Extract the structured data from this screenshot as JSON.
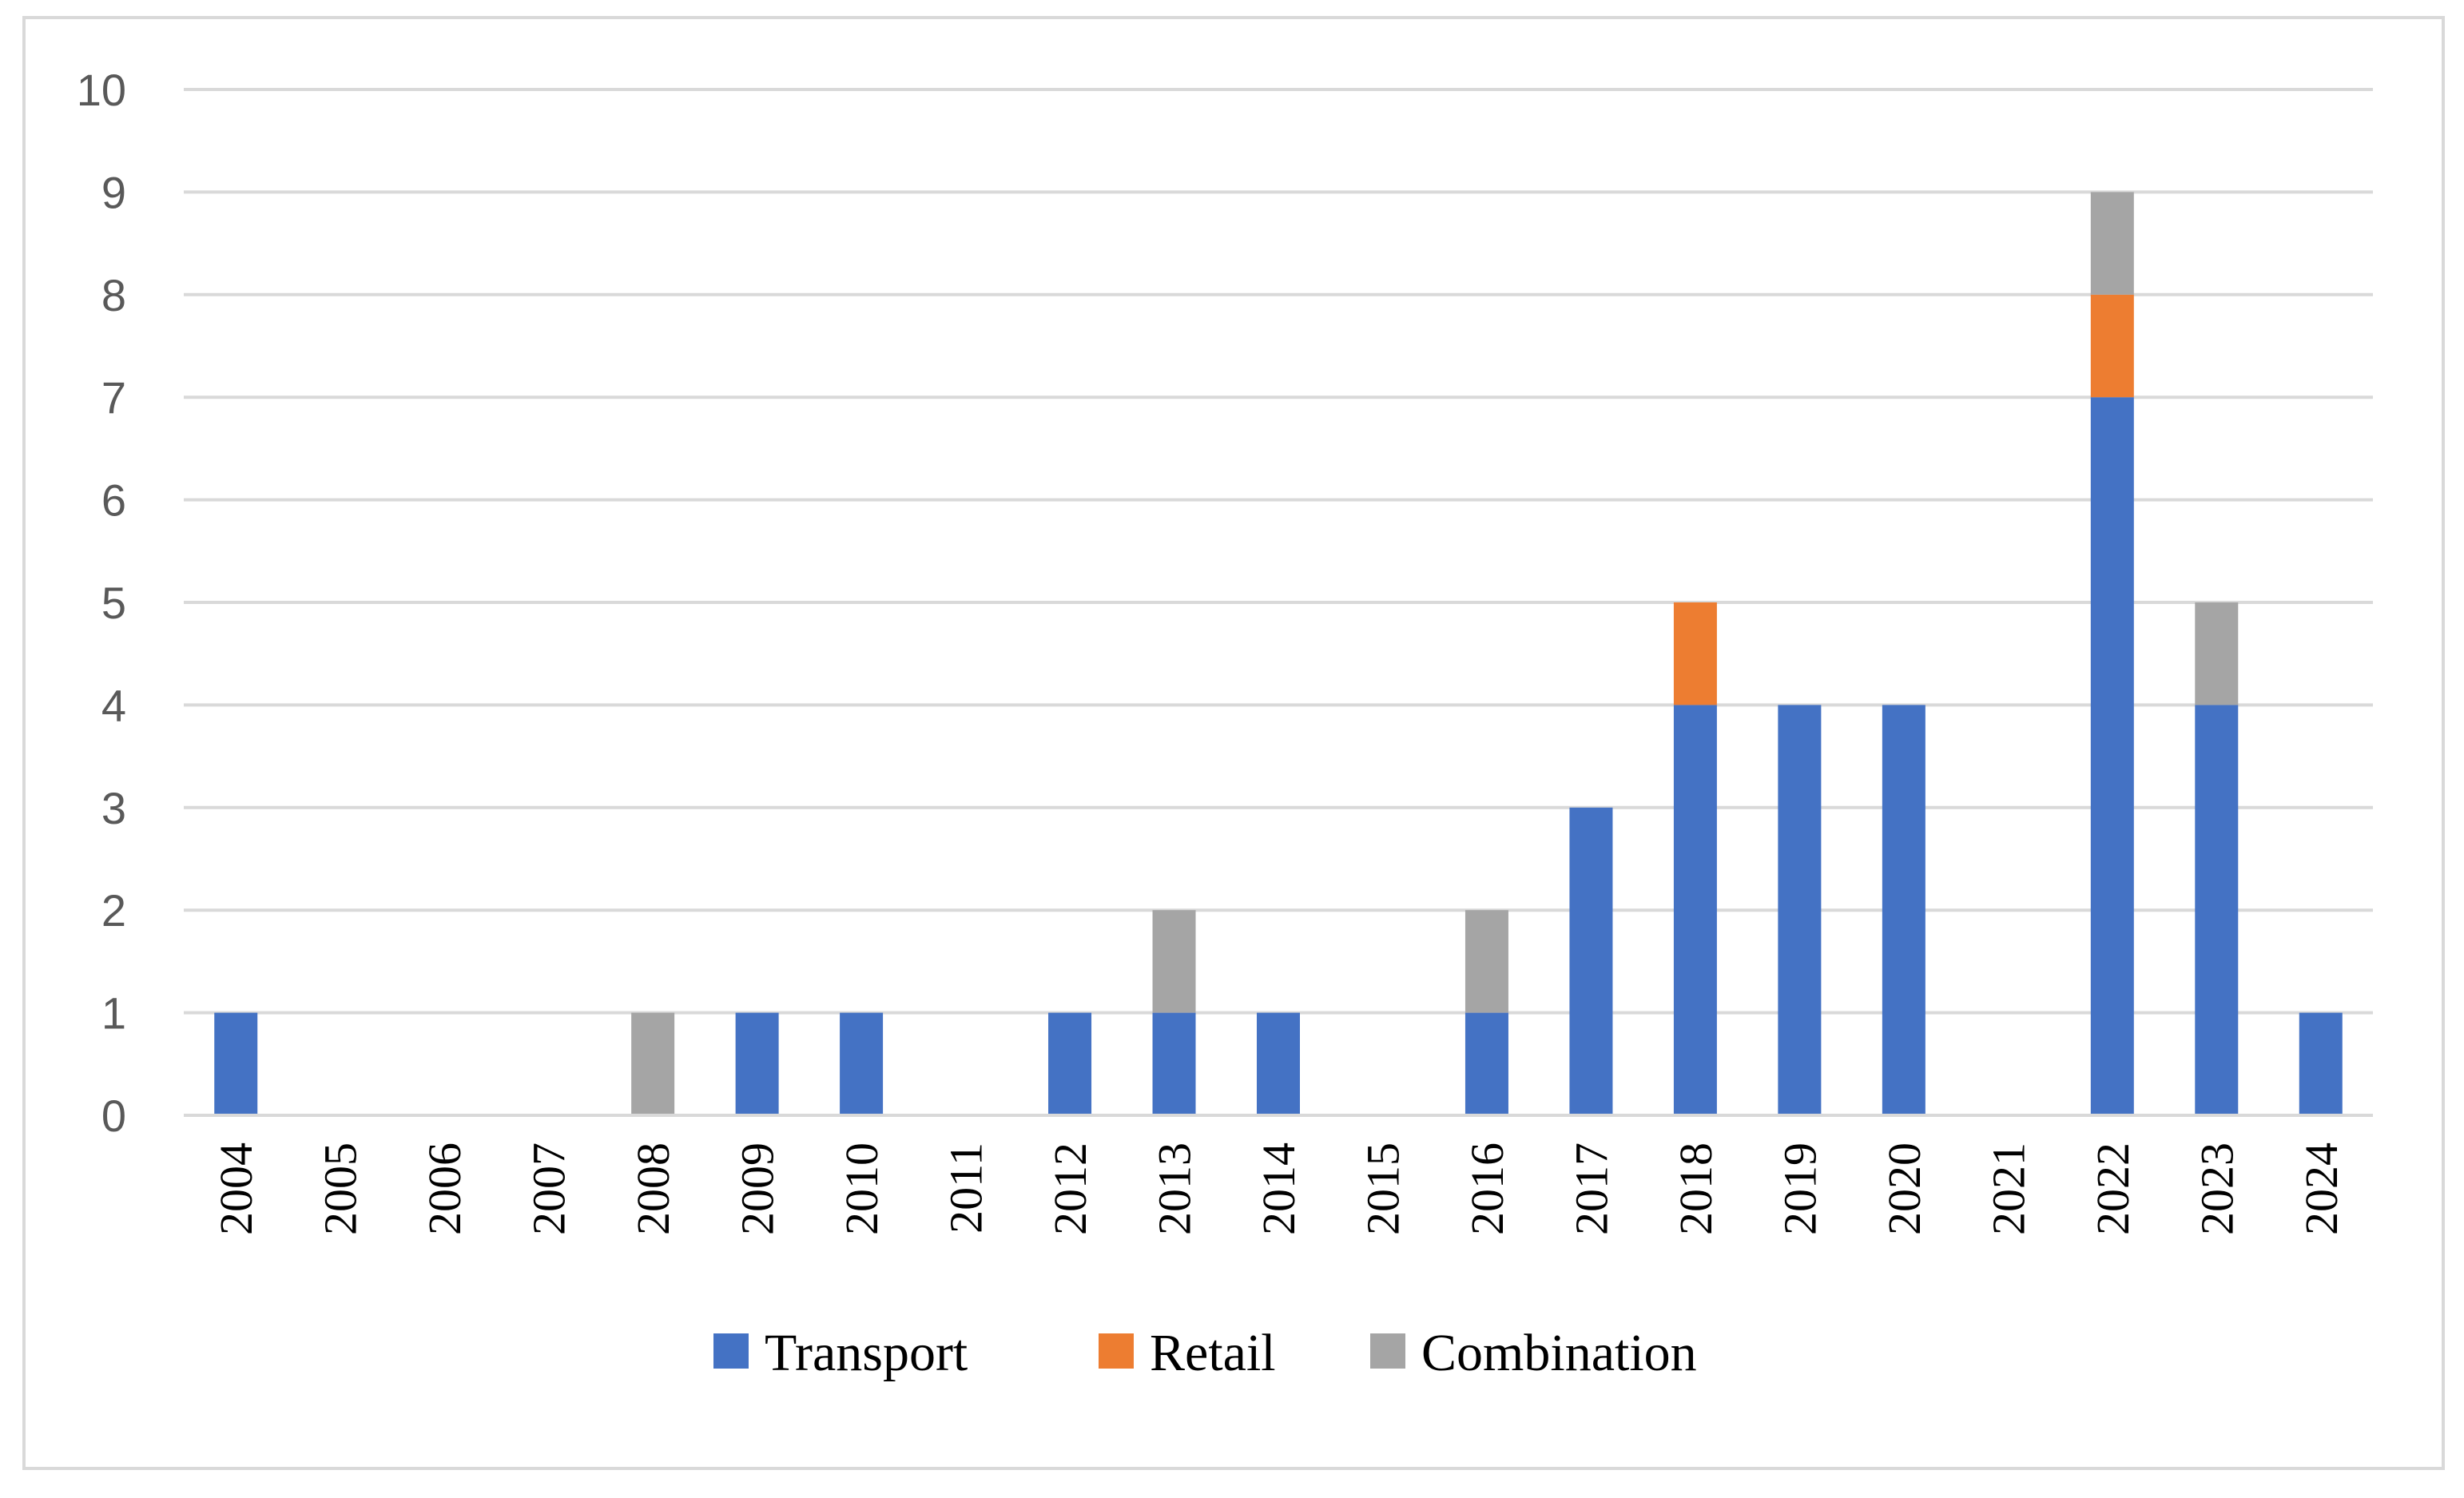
{
  "chart_data": {
    "type": "bar",
    "stacked": true,
    "title": "",
    "xlabel": "",
    "ylabel": "",
    "ylim": [
      0,
      10
    ],
    "yticks": [
      0,
      1,
      2,
      3,
      4,
      5,
      6,
      7,
      8,
      9,
      10
    ],
    "y_tick_labels": [
      "0",
      "1",
      "2",
      "3",
      "4",
      "5",
      "6",
      "7",
      "8",
      "9",
      "10"
    ],
    "grid": true,
    "legend_position": "bottom",
    "categories": [
      "2004",
      "2005",
      "2006",
      "2007",
      "2008",
      "2009",
      "2010",
      "2011",
      "2012",
      "2013",
      "2014",
      "2015",
      "2016",
      "2017",
      "2018",
      "2019",
      "2020",
      "2021",
      "2022",
      "2023",
      "2024"
    ],
    "series": [
      {
        "name": "Transport",
        "color": "#4472c4",
        "values": [
          1,
          0,
          0,
          0,
          0,
          1,
          1,
          0,
          1,
          1,
          1,
          0,
          1,
          3,
          4,
          4,
          4,
          0,
          7,
          4,
          1
        ]
      },
      {
        "name": "Retail",
        "color": "#ed7d31",
        "values": [
          0,
          0,
          0,
          0,
          0,
          0,
          0,
          0,
          0,
          0,
          0,
          0,
          0,
          0,
          1,
          0,
          0,
          0,
          1,
          0,
          0
        ]
      },
      {
        "name": "Combination",
        "color": "#a5a5a5",
        "values": [
          0,
          0,
          0,
          0,
          1,
          0,
          0,
          0,
          0,
          1,
          0,
          0,
          1,
          0,
          0,
          0,
          0,
          0,
          1,
          1,
          0
        ]
      }
    ]
  }
}
